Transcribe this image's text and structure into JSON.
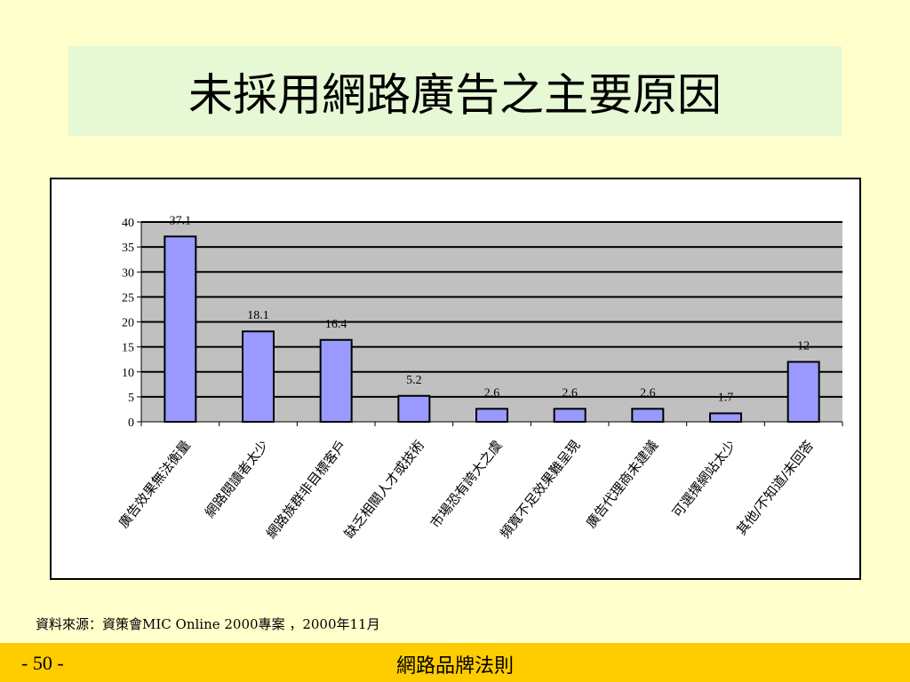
{
  "slide": {
    "title": "未採用網路廣告之主要原因",
    "source": "資料來源：資策會MIC Online 2000專案 ，2000年11月",
    "page_number": "- 50 -",
    "footer_title": "網路品牌法則"
  },
  "colors": {
    "background": "#FFFFCC",
    "title_box": "#E6F8D4",
    "plot_area": "#C0C0C0",
    "bar_fill": "#9999FF",
    "footer": "#FFCC00"
  },
  "chart_data": {
    "type": "bar",
    "categories": [
      "廣告效果無法衡量",
      "網路閱讀者太少",
      "網路族群非目標客戶",
      "缺乏相關人才或技術",
      "市場恐有誇大之虞",
      "頻寬不足效果難呈現",
      "廣告代理商未建議",
      "可選擇網站太少",
      "其他/不知道/未回答"
    ],
    "values": [
      37.1,
      18.1,
      16.4,
      5.2,
      2.6,
      2.6,
      2.6,
      1.7,
      12
    ],
    "data_labels": [
      "37.1",
      "18.1",
      "16.4",
      "5.2",
      "2.6",
      "2.6",
      "2.6",
      "1.7",
      "12"
    ],
    "ylim": [
      0,
      40
    ],
    "yticks": [
      0,
      5,
      10,
      15,
      20,
      25,
      30,
      35,
      40
    ],
    "grid": true,
    "legend": "none",
    "xlabel": "",
    "ylabel": ""
  }
}
